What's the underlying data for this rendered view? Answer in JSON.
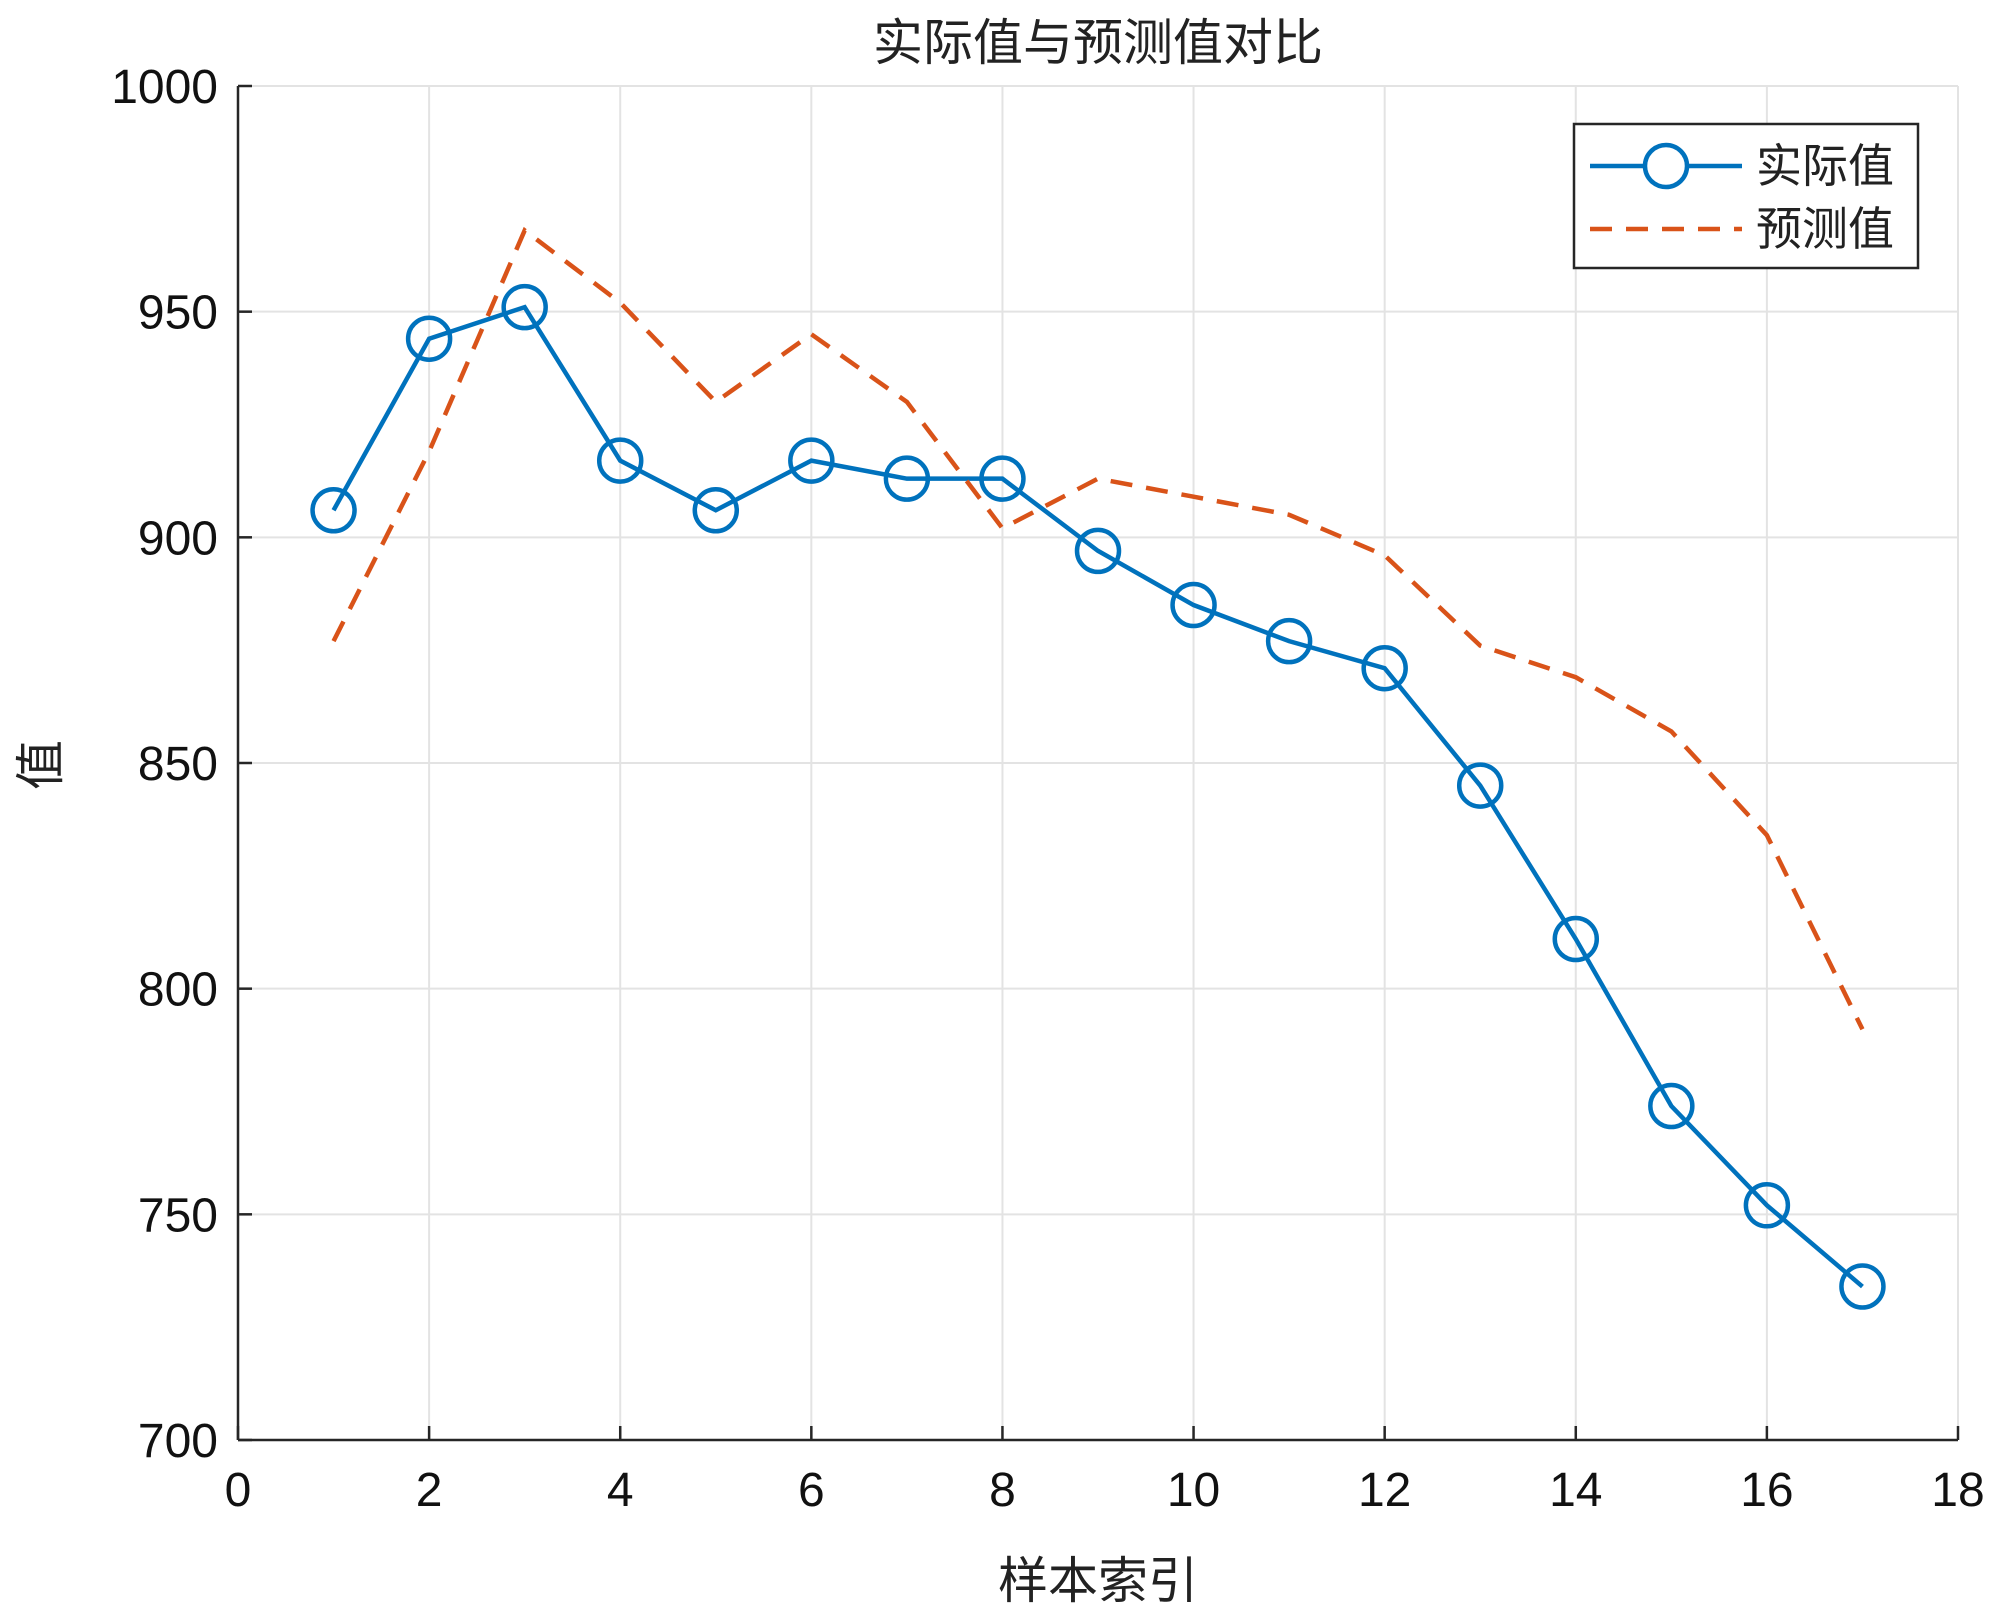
{
  "chart_data": {
    "type": "line",
    "title": "实际值与预测值对比",
    "xlabel": "样本索引",
    "ylabel": "值",
    "xlim": [
      0,
      18
    ],
    "ylim": [
      700,
      1000
    ],
    "xticks": [
      0,
      2,
      4,
      6,
      8,
      10,
      12,
      14,
      16,
      18
    ],
    "yticks": [
      700,
      750,
      800,
      850,
      900,
      950,
      1000
    ],
    "grid": true,
    "legend_position": "top-right",
    "x": [
      1,
      2,
      3,
      4,
      5,
      6,
      7,
      8,
      9,
      10,
      11,
      12,
      13,
      14,
      15,
      16,
      17
    ],
    "series": [
      {
        "name": "实际值",
        "color": "#0072BD",
        "style": "solid-circle-markers",
        "values": [
          906,
          944,
          951,
          917,
          906,
          917,
          913,
          913,
          897,
          885,
          877,
          871,
          845,
          811,
          774,
          752,
          734
        ]
      },
      {
        "name": "预测值",
        "color": "#D95319",
        "style": "dashed",
        "values": [
          877,
          919,
          968,
          952,
          930,
          945,
          930,
          902,
          913,
          909,
          905,
          896,
          876,
          869,
          857,
          834,
          791
        ]
      }
    ]
  }
}
